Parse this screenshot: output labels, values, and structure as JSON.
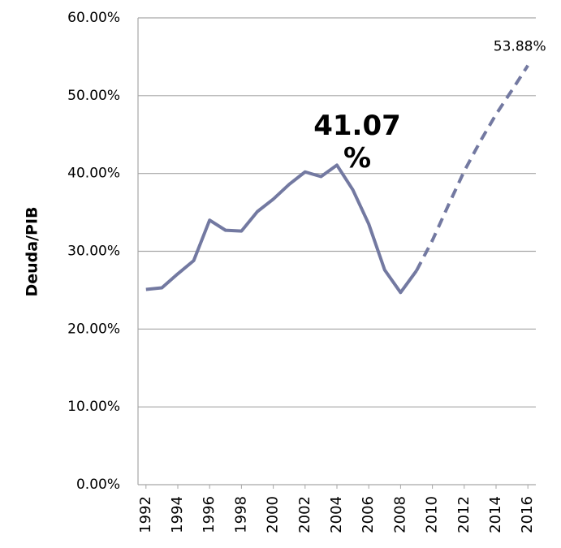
{
  "chart_data": {
    "type": "line",
    "ylabel": "Deuda/PIB",
    "x": [
      1992,
      1993,
      1994,
      1995,
      1996,
      1997,
      1998,
      1999,
      2000,
      2001,
      2002,
      2003,
      2004,
      2005,
      2006,
      2007,
      2008,
      2009,
      2010,
      2011,
      2012,
      2013,
      2014,
      2015,
      2016
    ],
    "xlim": [
      1991.5,
      2016.5
    ],
    "xticks": [
      1992,
      1994,
      1996,
      1998,
      2000,
      2002,
      2004,
      2006,
      2008,
      2010,
      2012,
      2014,
      2016
    ],
    "ylim": [
      0,
      60
    ],
    "yticks": [
      {
        "value": 0,
        "label": "0.00%"
      },
      {
        "value": 10,
        "label": "10.00%"
      },
      {
        "value": 20,
        "label": "20.00%"
      },
      {
        "value": 30,
        "label": "30.00%"
      },
      {
        "value": 40,
        "label": "40.00%"
      },
      {
        "value": 50,
        "label": "50.00%"
      },
      {
        "value": 60,
        "label": "60.00%"
      }
    ],
    "grid": true,
    "series": [
      {
        "color": "#7379a1",
        "dashed": false,
        "values": [
          25.1,
          25.3,
          27.1,
          28.8,
          34.0,
          32.7,
          32.6,
          35.1,
          36.7,
          38.6,
          40.2,
          39.6,
          41.07,
          37.9,
          33.5,
          27.6,
          24.7,
          27.5,
          null,
          null,
          null,
          null,
          null,
          null,
          null
        ],
        "value_labels": [
          null,
          null,
          null,
          null,
          null,
          null,
          null,
          null,
          null,
          null,
          null,
          null,
          "41.07 %",
          null,
          null,
          null,
          null,
          null,
          null,
          null,
          null,
          null,
          null,
          null,
          null
        ]
      },
      {
        "color": "#7379a1",
        "dashed": true,
        "values": [
          null,
          null,
          null,
          null,
          null,
          null,
          null,
          null,
          null,
          null,
          null,
          null,
          null,
          null,
          null,
          null,
          null,
          27.5,
          31.4,
          35.9,
          40.3,
          44.1,
          47.6,
          50.7,
          53.88
        ],
        "value_labels": [
          null,
          null,
          null,
          null,
          null,
          null,
          null,
          null,
          null,
          null,
          null,
          null,
          null,
          null,
          null,
          null,
          null,
          null,
          null,
          null,
          null,
          null,
          null,
          null,
          "53.88%"
        ]
      }
    ]
  }
}
